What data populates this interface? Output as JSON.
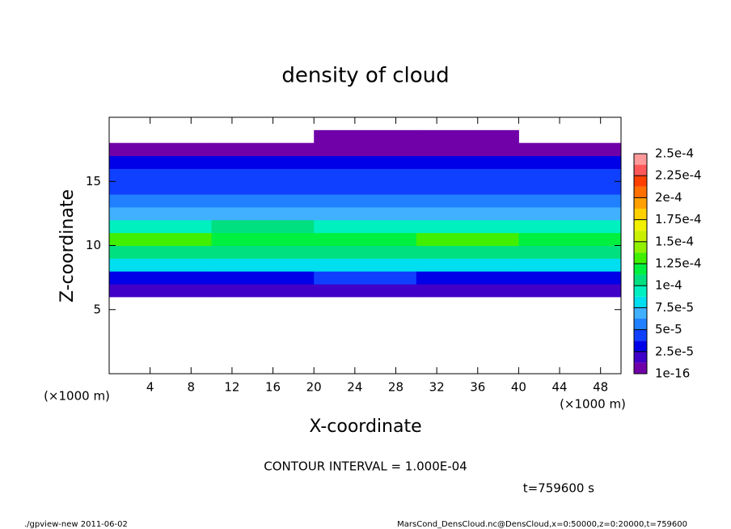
{
  "chart_data": {
    "type": "heatmap",
    "title": "density of cloud",
    "x_label": "X-coordinate",
    "y_label": "Z-coordinate",
    "x_unit": "(×1000 m)",
    "y_unit": "(×1000 m)",
    "x": [
      0,
      10,
      20,
      30,
      40,
      50
    ],
    "y": [
      6,
      7,
      8,
      9,
      10,
      11,
      12,
      13,
      14,
      15,
      16,
      17,
      18,
      19
    ],
    "values": [
      [
        2e-05,
        2e-05,
        2e-05,
        2e-05,
        2e-05
      ],
      [
        3e-05,
        3e-05,
        4e-05,
        3e-05,
        3e-05
      ],
      [
        8e-05,
        8e-05,
        8.5e-05,
        8e-05,
        8e-05
      ],
      [
        0.00011,
        0.00011,
        0.000105,
        0.00011,
        0.00011
      ],
      [
        0.00013,
        0.000125,
        0.00012,
        0.00013,
        0.000125
      ],
      [
        0.0001,
        0.000105,
        0.0001,
        0.0001,
        0.0001
      ],
      [
        7e-05,
        7.5e-05,
        7e-05,
        7.5e-05,
        7e-05
      ],
      [
        6e-05,
        6e-05,
        6e-05,
        6e-05,
        6e-05
      ],
      [
        5e-05,
        5e-05,
        4e-05,
        5e-05,
        5e-05
      ],
      [
        5e-05,
        5e-05,
        5e-05,
        5e-05,
        5e-05
      ],
      [
        3e-05,
        3e-05,
        3e-05,
        3e-05,
        3e-05
      ],
      [
        1e-05,
        1e-05,
        1e-05,
        1e-05,
        1e-05
      ],
      [
        null,
        null,
        1e-05,
        1e-05,
        null
      ]
    ],
    "xlim": [
      0,
      50
    ],
    "ylim": [
      0,
      20
    ],
    "xticks": [
      4,
      8,
      12,
      16,
      20,
      24,
      28,
      32,
      36,
      40,
      44,
      48
    ],
    "yticks": [
      5,
      10,
      15
    ],
    "colorbar": {
      "clim": [
        1e-16,
        0.00025
      ],
      "ticks": [
        {
          "value": 1e-16,
          "label": "1e-16"
        },
        {
          "value": 2.5e-05,
          "label": "2.5e-5"
        },
        {
          "value": 5e-05,
          "label": "5e-5"
        },
        {
          "value": 7.5e-05,
          "label": "7.5e-5"
        },
        {
          "value": 0.0001,
          "label": "1e-4"
        },
        {
          "value": 0.000125,
          "label": "1.25e-4"
        },
        {
          "value": 0.00015,
          "label": "1.5e-4"
        },
        {
          "value": 0.000175,
          "label": "1.75e-4"
        },
        {
          "value": 0.0002,
          "label": "2e-4"
        },
        {
          "value": 0.000225,
          "label": "2.25e-4"
        },
        {
          "value": 0.00025,
          "label": "2.5e-4"
        }
      ],
      "colors": [
        "#7000a8",
        "#4000c8",
        "#0000e8",
        "#1040ff",
        "#2080ff",
        "#40b0ff",
        "#00dff0",
        "#00f0c0",
        "#00e080",
        "#00f040",
        "#40f000",
        "#90f000",
        "#c8f000",
        "#f0f000",
        "#ffd000",
        "#ffa000",
        "#ff7000",
        "#ff4000",
        "#ff5858",
        "#ff9a9a"
      ]
    },
    "annotation": "CONTOUR INTERVAL = 1.000E-04",
    "time_label": "t=759600 s",
    "footer_left": "./gpview-new  2011-06-02",
    "footer_right": "MarsCond_DensCloud.nc@DensCloud,x=0:50000,z=0:20000,t=759600"
  }
}
